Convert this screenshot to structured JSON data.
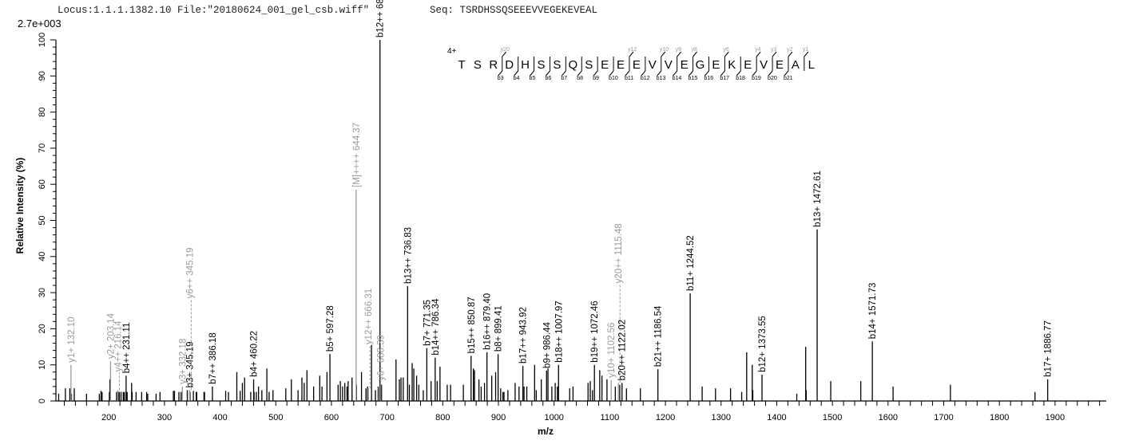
{
  "header": {
    "locus": "Locus:1.1.1.1382.10",
    "file": "File:\"20180624_001_gel_csb.wiff\"",
    "seq_label": "Seq:",
    "sequence": "TSRDHSSQSEEEVVEGEKEVEAL"
  },
  "colors": {
    "b_ion": "#000000",
    "y_ion": "#999999",
    "precursor": "#999999",
    "peak": "#000000",
    "axis": "#000000"
  },
  "fragment_map": {
    "charge": "4+",
    "residues": [
      "T",
      "S",
      "R",
      "D",
      "H",
      "S",
      "S",
      "Q",
      "S",
      "E",
      "E",
      "E",
      "V",
      "V",
      "E",
      "G",
      "E",
      "K",
      "E",
      "V",
      "E",
      "A",
      "L"
    ],
    "b_ions": [
      3,
      4,
      5,
      6,
      7,
      8,
      9,
      10,
      11,
      12,
      13,
      14,
      15,
      16,
      17,
      18,
      19,
      20,
      21
    ],
    "y_ions": [
      20,
      12,
      10,
      9,
      8,
      6,
      4,
      3,
      2,
      1
    ]
  },
  "chart_data": {
    "type": "bar",
    "title": "",
    "scale_label": "2.7e+003",
    "xlabel": "m/z",
    "ylabel": "Relative  Intensity (%)",
    "xlim": [
      105,
      1992
    ],
    "ylim": [
      0,
      100
    ],
    "x_ticks": [
      200,
      300,
      400,
      500,
      600,
      700,
      800,
      900,
      1000,
      1100,
      1200,
      1300,
      1400,
      1500,
      1600,
      1700,
      1800,
      1900
    ],
    "y_ticks": [
      0,
      10,
      20,
      30,
      40,
      50,
      60,
      70,
      80,
      90,
      100
    ],
    "grid": false,
    "annotated_peaks": [
      {
        "mz": 132.1,
        "intensity": 10,
        "label": "y1+ 132.10",
        "type": "y"
      },
      {
        "mz": 203.14,
        "intensity": 11,
        "label": "y2+ 203.14",
        "type": "y"
      },
      {
        "mz": 216.14,
        "intensity": 3,
        "label": "y4++ 216.14",
        "type": "y",
        "dashed": true
      },
      {
        "mz": 231.11,
        "intensity": 7,
        "label": "b4++ 231.11",
        "type": "b"
      },
      {
        "mz": 332.18,
        "intensity": 4,
        "label": "y3+ 332.18",
        "type": "y"
      },
      {
        "mz": 345.19,
        "intensity": 3,
        "label": "b3+ 345.19",
        "type": "b"
      },
      {
        "mz": 345.19,
        "intensity": 3,
        "label": "y6++ 345.19",
        "type": "y",
        "dashed": true
      },
      {
        "mz": 386.18,
        "intensity": 4,
        "label": "b7++ 386.18",
        "type": "b"
      },
      {
        "mz": 460.22,
        "intensity": 6,
        "label": "b4+ 460.22",
        "type": "b"
      },
      {
        "mz": 597.28,
        "intensity": 13,
        "label": "b5+ 597.28",
        "type": "b"
      },
      {
        "mz": 644.37,
        "intensity": 58.5,
        "label": "[M]++++ 644.37",
        "type": "y"
      },
      {
        "mz": 666.31,
        "intensity": 3.5,
        "label": "y12++ 666.31",
        "type": "y",
        "dashed": true
      },
      {
        "mz": 687.2,
        "intensity": 100,
        "label": "b12++ 687.20",
        "type": "b"
      },
      {
        "mz": 688.39,
        "intensity": 5,
        "label": "y6+ 688.39",
        "type": "y"
      },
      {
        "mz": 736.83,
        "intensity": 31.8,
        "label": "b13++ 736.83",
        "type": "b"
      },
      {
        "mz": 771.35,
        "intensity": 14.6,
        "label": "b7+ 771.35",
        "type": "b"
      },
      {
        "mz": 786.34,
        "intensity": 12,
        "label": "b14++ 786.34",
        "type": "b"
      },
      {
        "mz": 850.87,
        "intensity": 12.5,
        "label": "b15++ 850.87",
        "type": "b"
      },
      {
        "mz": 879.4,
        "intensity": 13.5,
        "label": "b16++ 879.40",
        "type": "b"
      },
      {
        "mz": 899.41,
        "intensity": 13,
        "label": "b8+ 899.41",
        "type": "b"
      },
      {
        "mz": 943.92,
        "intensity": 9.7,
        "label": "b17++ 943.92",
        "type": "b"
      },
      {
        "mz": 986.44,
        "intensity": 8.4,
        "label": "b9+ 986.44",
        "type": "b"
      },
      {
        "mz": 1007.97,
        "intensity": 10,
        "label": "b18++ 1007.97",
        "type": "b"
      },
      {
        "mz": 1072.46,
        "intensity": 10,
        "label": "b19++ 1072.46",
        "type": "b"
      },
      {
        "mz": 1102.56,
        "intensity": 5.8,
        "label": "y10+ 1102.56",
        "type": "y"
      },
      {
        "mz": 1115.48,
        "intensity": 5,
        "label": "y20++ 1115.48",
        "type": "y",
        "dashed": true
      },
      {
        "mz": 1122.02,
        "intensity": 5,
        "label": "b20++ 1122.02",
        "type": "b"
      },
      {
        "mz": 1186.54,
        "intensity": 8.8,
        "label": "b21++ 1186.54",
        "type": "b"
      },
      {
        "mz": 1244.52,
        "intensity": 29.8,
        "label": "b11+ 1244.52",
        "type": "b"
      },
      {
        "mz": 1373.55,
        "intensity": 7.3,
        "label": "b12+ 1373.55",
        "type": "b"
      },
      {
        "mz": 1472.61,
        "intensity": 47.5,
        "label": "b13+ 1472.61",
        "type": "b"
      },
      {
        "mz": 1571.73,
        "intensity": 16.5,
        "label": "b14+ 1571.73",
        "type": "b"
      },
      {
        "mz": 1886.77,
        "intensity": 6,
        "label": "b17+ 1886.77",
        "type": "b"
      }
    ],
    "peaks": [
      [
        110,
        2
      ],
      [
        122,
        3.5
      ],
      [
        130,
        3.5
      ],
      [
        133,
        2
      ],
      [
        138,
        3.5
      ],
      [
        160,
        2
      ],
      [
        183,
        2
      ],
      [
        186,
        2.8
      ],
      [
        188,
        2.5
      ],
      [
        201,
        2.5
      ],
      [
        202,
        6
      ],
      [
        214,
        2.5
      ],
      [
        217,
        2.5
      ],
      [
        219,
        2.5
      ],
      [
        222,
        2.5
      ],
      [
        226,
        2.5
      ],
      [
        228,
        2.5
      ],
      [
        233,
        2.5
      ],
      [
        241,
        5
      ],
      [
        242,
        2.5
      ],
      [
        249,
        2.5
      ],
      [
        259,
        2.5
      ],
      [
        268,
        2.5
      ],
      [
        270,
        2
      ],
      [
        285,
        2
      ],
      [
        292,
        2.5
      ],
      [
        316,
        2.8
      ],
      [
        318,
        2.8
      ],
      [
        326,
        2.5
      ],
      [
        330,
        2.5
      ],
      [
        341,
        3
      ],
      [
        346,
        2.5
      ],
      [
        352,
        2.8
      ],
      [
        357,
        2.5
      ],
      [
        358,
        2.5
      ],
      [
        371,
        2.5
      ],
      [
        372,
        2.5
      ],
      [
        410,
        2.8
      ],
      [
        415,
        2.5
      ],
      [
        430,
        8
      ],
      [
        436,
        2.8
      ],
      [
        440,
        5
      ],
      [
        444,
        6.5
      ],
      [
        455,
        2.5
      ],
      [
        461,
        2.5
      ],
      [
        465,
        2.5
      ],
      [
        469,
        4
      ],
      [
        475,
        3
      ],
      [
        484,
        9
      ],
      [
        488,
        2.5
      ],
      [
        495,
        3
      ],
      [
        518,
        3.5
      ],
      [
        528,
        6
      ],
      [
        540,
        3
      ],
      [
        547,
        6.5
      ],
      [
        551,
        5
      ],
      [
        556,
        8.5
      ],
      [
        568,
        4
      ],
      [
        579,
        7
      ],
      [
        583,
        4
      ],
      [
        592,
        8
      ],
      [
        612,
        4.5
      ],
      [
        616,
        5.5
      ],
      [
        620,
        4
      ],
      [
        624,
        5
      ],
      [
        628,
        4
      ],
      [
        630,
        5.5
      ],
      [
        637,
        6.5
      ],
      [
        645,
        4.5
      ],
      [
        654,
        8
      ],
      [
        662,
        3.5
      ],
      [
        665,
        4
      ],
      [
        672,
        15.5
      ],
      [
        679,
        3
      ],
      [
        684,
        4
      ],
      [
        690,
        4.5
      ],
      [
        716,
        11.5
      ],
      [
        722,
        6
      ],
      [
        725,
        6.5
      ],
      [
        729,
        6.5
      ],
      [
        740,
        4.5
      ],
      [
        745,
        10.5
      ],
      [
        748,
        9
      ],
      [
        753,
        7
      ],
      [
        757,
        4.5
      ],
      [
        765,
        3
      ],
      [
        779,
        5.5
      ],
      [
        790,
        5.5
      ],
      [
        795,
        9.5
      ],
      [
        808,
        4.5
      ],
      [
        814,
        4.5
      ],
      [
        837,
        4.5
      ],
      [
        855,
        9
      ],
      [
        857,
        8.5
      ],
      [
        865,
        6
      ],
      [
        869,
        4
      ],
      [
        875,
        5
      ],
      [
        888,
        7
      ],
      [
        895,
        8
      ],
      [
        904,
        3.5
      ],
      [
        908,
        2.5
      ],
      [
        910,
        2.5
      ],
      [
        917,
        3
      ],
      [
        930,
        5
      ],
      [
        937,
        4
      ],
      [
        946,
        4
      ],
      [
        951,
        4
      ],
      [
        965,
        10
      ],
      [
        968,
        3
      ],
      [
        977,
        6
      ],
      [
        989,
        9
      ],
      [
        996,
        4
      ],
      [
        1002,
        5
      ],
      [
        1006,
        4
      ],
      [
        1028,
        3.5
      ],
      [
        1034,
        4
      ],
      [
        1061,
        5
      ],
      [
        1065,
        5.5
      ],
      [
        1069,
        3
      ],
      [
        1082,
        8.5
      ],
      [
        1086,
        7
      ],
      [
        1095,
        6
      ],
      [
        1110,
        4
      ],
      [
        1118,
        4.5
      ],
      [
        1130,
        3.5
      ],
      [
        1155,
        3.5
      ],
      [
        1266,
        4
      ],
      [
        1290,
        3.5
      ],
      [
        1317,
        3.5
      ],
      [
        1337,
        2.5
      ],
      [
        1346,
        13.5
      ],
      [
        1356,
        10
      ],
      [
        1357,
        3
      ],
      [
        1436,
        2
      ],
      [
        1452,
        15
      ],
      [
        1453,
        3
      ],
      [
        1497,
        5.5
      ],
      [
        1551,
        5.5
      ],
      [
        1609,
        4
      ],
      [
        1712,
        4.5
      ],
      [
        1864,
        2.5
      ]
    ]
  }
}
